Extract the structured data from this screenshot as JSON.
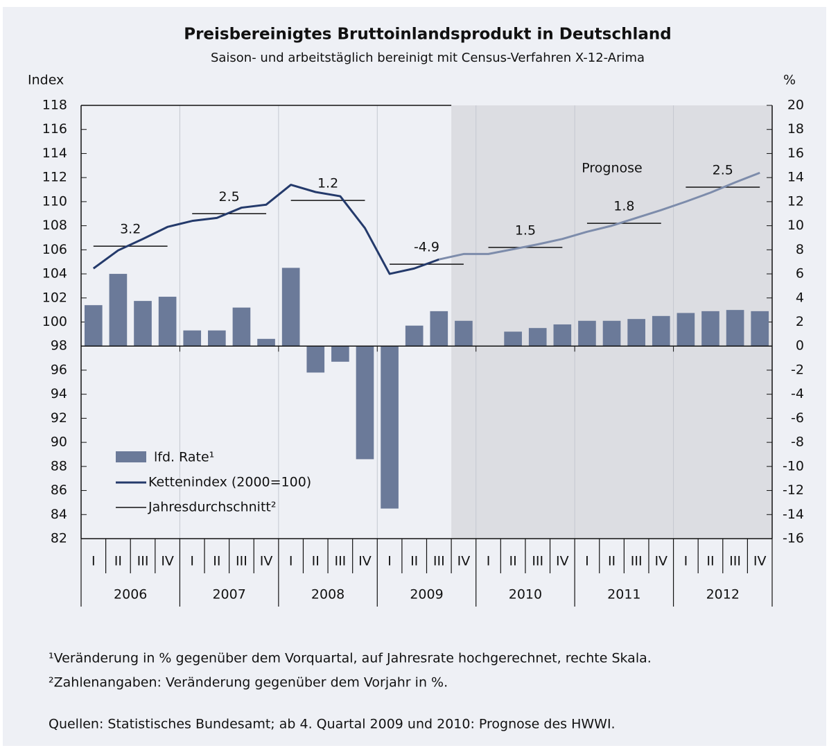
{
  "chart_data": {
    "type": "bar_line",
    "title": "Preisbereinigtes Bruttoinlandsprodukt in Deutschland",
    "subtitle": "Saison- und arbeitstäglich bereinigt mit Census-Verfahren X-12-Arima",
    "y_label": "Index",
    "y2_label": "%",
    "categories": [
      "I",
      "II",
      "III",
      "IV",
      "I",
      "II",
      "III",
      "IV",
      "I",
      "II",
      "III",
      "IV",
      "I",
      "II",
      "III",
      "IV",
      "I",
      "II",
      "III",
      "IV",
      "I",
      "II",
      "III",
      "IV",
      "I",
      "II",
      "III",
      "IV"
    ],
    "years": [
      "2006",
      "2007",
      "2008",
      "2009",
      "2010",
      "2011",
      "2012"
    ],
    "ylim": [
      82,
      118
    ],
    "yticks": [
      82,
      84,
      86,
      88,
      90,
      92,
      94,
      96,
      98,
      100,
      102,
      104,
      106,
      108,
      110,
      112,
      114,
      116,
      118
    ],
    "y2lim": [
      -16,
      20
    ],
    "y2ticks": [
      -16,
      -14,
      -12,
      -10,
      -8,
      -6,
      -4,
      -2,
      0,
      2,
      4,
      6,
      8,
      10,
      12,
      14,
      16,
      18,
      20
    ],
    "series": [
      {
        "name": "lfd. Rate¹",
        "type": "bar",
        "axis": "y2",
        "color": "#6b7a99",
        "values": [
          3.4,
          6.0,
          3.75,
          4.1,
          1.3,
          1.3,
          3.2,
          0.6,
          6.5,
          -2.2,
          -1.3,
          -9.4,
          -13.5,
          1.7,
          2.9,
          2.1,
          0,
          1.2,
          1.5,
          1.8,
          2.1,
          2.1,
          2.25,
          2.5,
          2.75,
          2.9,
          3.0,
          2.9
        ]
      },
      {
        "name": "Kettenindex (2000=100)",
        "type": "line",
        "axis": "y",
        "color": "#243a6b",
        "values": [
          104.45,
          105.95,
          106.9,
          107.9,
          108.4,
          108.65,
          109.5,
          109.75,
          111.4,
          110.8,
          110.45,
          107.8,
          104.0,
          104.45,
          105.2,
          105.65,
          105.65,
          106.05,
          106.45,
          106.9,
          107.5,
          108.0,
          108.65,
          109.3,
          110.0,
          110.75,
          111.6,
          112.4
        ]
      }
    ],
    "annual": {
      "name": "Jahresdurchschnitt²",
      "color": "#111111",
      "levels": [
        106.3,
        109.0,
        110.1,
        104.8,
        106.2,
        108.2,
        111.2
      ],
      "rates": [
        3.2,
        2.5,
        1.2,
        -4.9,
        1.5,
        1.8,
        2.5
      ]
    },
    "prognose": {
      "label": "Prognose",
      "start": 15,
      "color": "#dcdde2",
      "line_color": "#7d8cab"
    },
    "footnotes": [
      "¹Veränderung in % gegenüber dem Vorquartal, auf Jahresrate hochgerechnet, rechte Skala.",
      "²Zahlenangaben: Veränderung gegenüber dem Vorjahr in %.",
      "Quellen: Statistisches Bundesamt; ab 4. Quartal 2009 und 2010: Prognose des HWWI."
    ]
  }
}
